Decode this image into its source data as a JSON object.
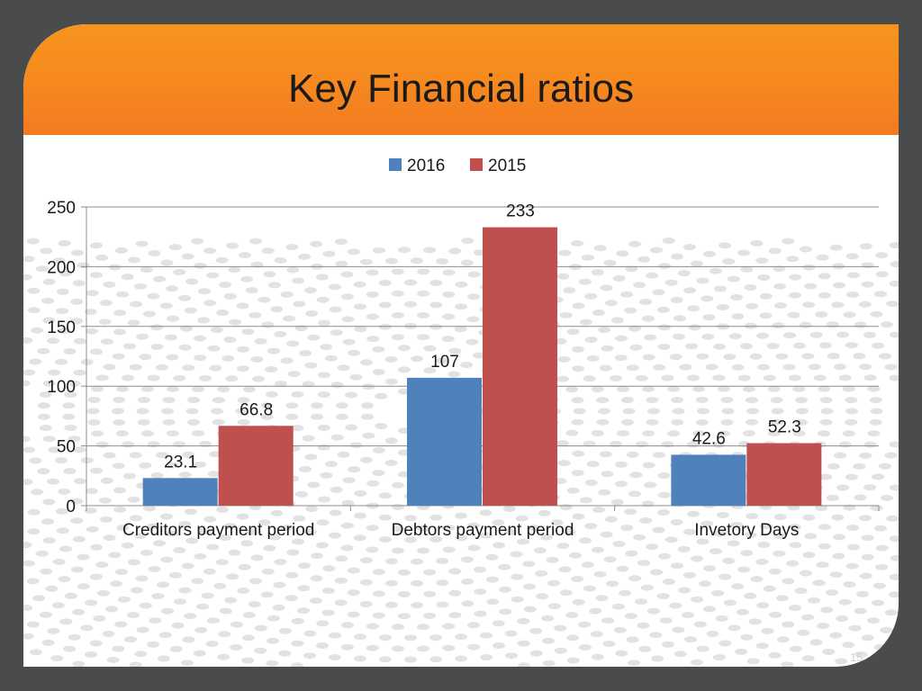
{
  "slide": {
    "title": "Key Financial ratios",
    "page_number": "15"
  },
  "colors": {
    "background": "#4a4b4d",
    "header_orange": "#f68b1f",
    "series_2016": "#4f81bd",
    "series_2015": "#c0504d"
  },
  "chart_data": {
    "type": "bar",
    "categories": [
      "Creditors payment period",
      "Debtors payment period",
      "Invetory Days"
    ],
    "series": [
      {
        "name": "2016",
        "values": [
          23.1,
          107,
          42.6
        ],
        "labels": [
          "23.1",
          "107",
          "42.6"
        ],
        "color": "#4f81bd"
      },
      {
        "name": "2015",
        "values": [
          66.8,
          233,
          52.3
        ],
        "labels": [
          "66.8",
          "233",
          "52.3"
        ],
        "color": "#c0504d"
      }
    ],
    "ylim": [
      0,
      250
    ],
    "yticks": [
      0,
      50,
      100,
      150,
      200,
      250
    ],
    "grid": true,
    "legend_position": "top-center"
  }
}
